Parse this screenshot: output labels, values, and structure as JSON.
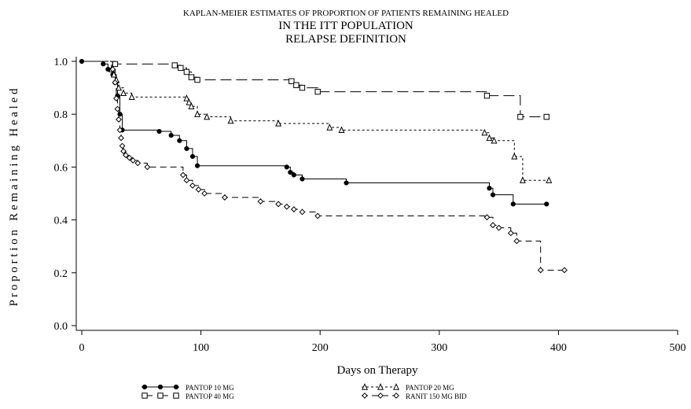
{
  "chart_data": {
    "type": "line",
    "step": true,
    "title_lines": [
      "KAPLAN-MEIER ESTIMATES OF PROPORTION OF PATIENTS REMAINING HEALED",
      "IN THE ITT POPULATION",
      "RELAPSE DEFINITION"
    ],
    "xlabel": "Days on Therapy",
    "ylabel": "P r o p o r t i o n   R e m a i n i n g   H e a l e d",
    "xlim": [
      0,
      500
    ],
    "ylim": [
      0.0,
      1.0
    ],
    "x_ticks": [
      0,
      100,
      200,
      300,
      400,
      500
    ],
    "y_ticks": [
      "0.0",
      "0.2",
      "0.4",
      "0.6",
      "0.8",
      "1.0"
    ],
    "legend": {
      "position": "bottom"
    },
    "series": [
      {
        "name": "PANTOP 10 MG",
        "marker": "circle",
        "line": "solid",
        "points": [
          [
            0,
            1.0
          ],
          [
            18,
            0.99
          ],
          [
            22,
            0.97
          ],
          [
            26,
            0.95
          ],
          [
            28,
            0.92
          ],
          [
            30,
            0.87
          ],
          [
            32,
            0.8
          ],
          [
            34,
            0.74
          ],
          [
            65,
            0.735
          ],
          [
            75,
            0.72
          ],
          [
            82,
            0.7
          ],
          [
            88,
            0.67
          ],
          [
            93,
            0.64
          ],
          [
            97,
            0.605
          ],
          [
            172,
            0.6
          ],
          [
            175,
            0.58
          ],
          [
            178,
            0.57
          ],
          [
            185,
            0.555
          ],
          [
            222,
            0.54
          ],
          [
            342,
            0.52
          ],
          [
            345,
            0.495
          ],
          [
            362,
            0.46
          ],
          [
            390,
            0.46
          ]
        ]
      },
      {
        "name": "PANTOP 40 MG",
        "marker": "square",
        "line": "longdash",
        "points": [
          [
            0,
            1.0
          ],
          [
            28,
            0.99
          ],
          [
            78,
            0.985
          ],
          [
            83,
            0.975
          ],
          [
            88,
            0.96
          ],
          [
            92,
            0.94
          ],
          [
            97,
            0.93
          ],
          [
            176,
            0.925
          ],
          [
            180,
            0.91
          ],
          [
            185,
            0.9
          ],
          [
            198,
            0.885
          ],
          [
            340,
            0.87
          ],
          [
            368,
            0.79
          ],
          [
            390,
            0.79
          ]
        ]
      },
      {
        "name": "PANTOP 20 MG",
        "marker": "triangle",
        "line": "shortdash",
        "points": [
          [
            0,
            1.0
          ],
          [
            25,
            0.97
          ],
          [
            27,
            0.95
          ],
          [
            29,
            0.93
          ],
          [
            31,
            0.9
          ],
          [
            35,
            0.88
          ],
          [
            42,
            0.865
          ],
          [
            88,
            0.86
          ],
          [
            90,
            0.845
          ],
          [
            92,
            0.83
          ],
          [
            97,
            0.8
          ],
          [
            105,
            0.79
          ],
          [
            125,
            0.775
          ],
          [
            165,
            0.765
          ],
          [
            208,
            0.75
          ],
          [
            218,
            0.74
          ],
          [
            338,
            0.73
          ],
          [
            342,
            0.71
          ],
          [
            346,
            0.7
          ],
          [
            363,
            0.64
          ],
          [
            370,
            0.55
          ],
          [
            392,
            0.55
          ]
        ]
      },
      {
        "name": "RANIT 150 MG BID",
        "marker": "diamond",
        "line": "dash",
        "points": [
          [
            0,
            1.0
          ],
          [
            26,
            0.97
          ],
          [
            28,
            0.92
          ],
          [
            29,
            0.86
          ],
          [
            30,
            0.82
          ],
          [
            31,
            0.78
          ],
          [
            32,
            0.74
          ],
          [
            33,
            0.71
          ],
          [
            34,
            0.68
          ],
          [
            35,
            0.66
          ],
          [
            37,
            0.645
          ],
          [
            40,
            0.635
          ],
          [
            43,
            0.625
          ],
          [
            47,
            0.615
          ],
          [
            55,
            0.6
          ],
          [
            85,
            0.57
          ],
          [
            88,
            0.55
          ],
          [
            93,
            0.53
          ],
          [
            98,
            0.515
          ],
          [
            103,
            0.5
          ],
          [
            120,
            0.485
          ],
          [
            150,
            0.47
          ],
          [
            165,
            0.46
          ],
          [
            172,
            0.45
          ],
          [
            178,
            0.44
          ],
          [
            185,
            0.43
          ],
          [
            198,
            0.415
          ],
          [
            340,
            0.41
          ],
          [
            345,
            0.38
          ],
          [
            350,
            0.37
          ],
          [
            360,
            0.35
          ],
          [
            365,
            0.32
          ],
          [
            385,
            0.21
          ],
          [
            405,
            0.21
          ]
        ]
      }
    ]
  }
}
